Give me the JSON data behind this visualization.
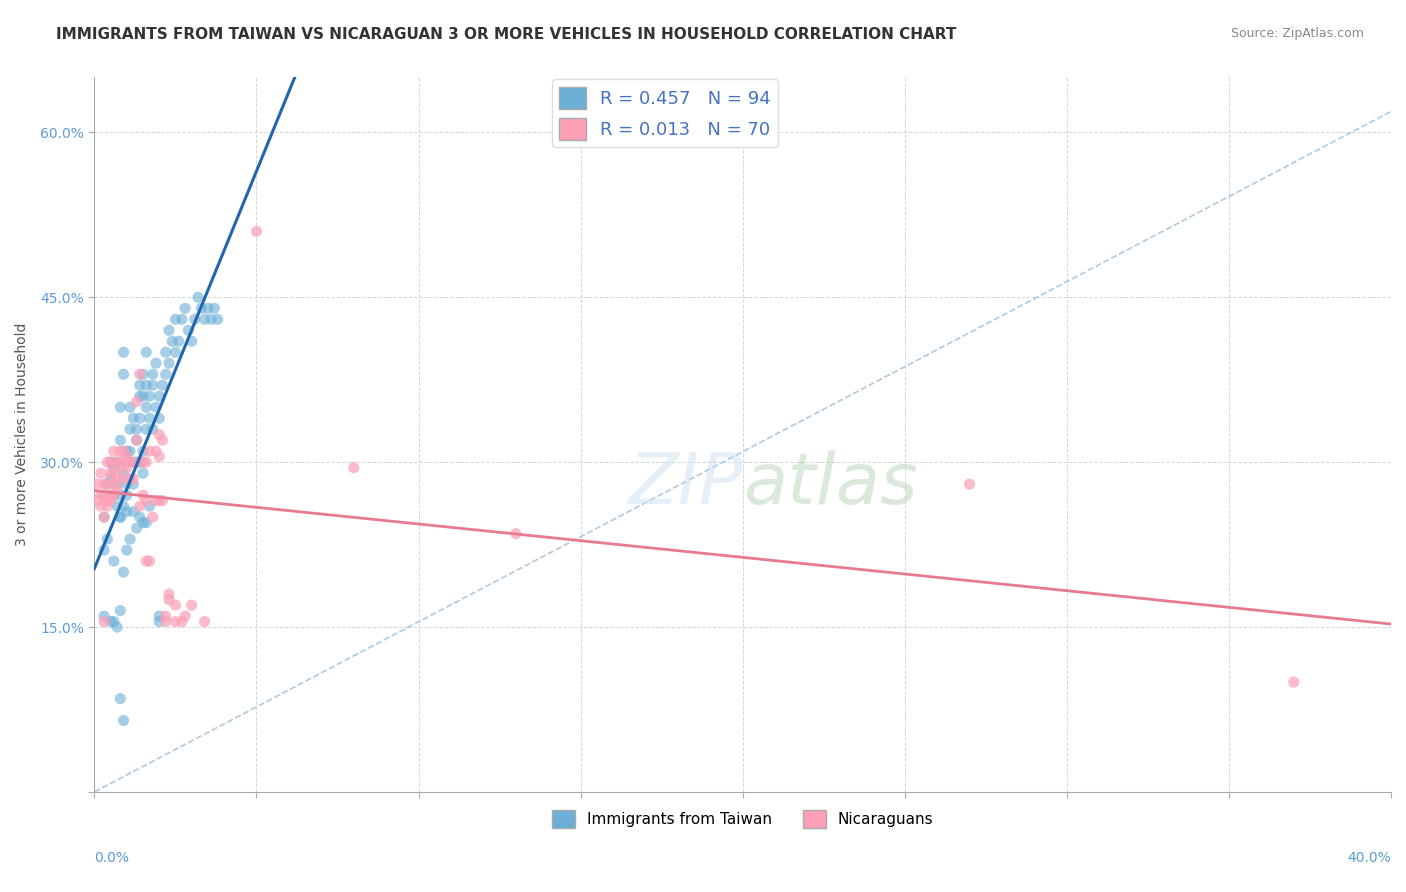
{
  "title": "IMMIGRANTS FROM TAIWAN VS NICARAGUAN 3 OR MORE VEHICLES IN HOUSEHOLD CORRELATION CHART",
  "source": "Source: ZipAtlas.com",
  "ylabel": "3 or more Vehicles in Household",
  "xmin": 0.0,
  "xmax": 0.4,
  "ymin": 0.0,
  "ymax": 0.65,
  "legend1_label": "R = 0.457   N = 94",
  "legend2_label": "R = 0.013   N = 70",
  "legend1_color": "#6baed6",
  "legend2_color": "#fc9fb5",
  "trendline1_color": "#2166ac",
  "trendline2_color": "#e87a90",
  "diagonal_color": "#8ab4d4",
  "background_color": "#ffffff",
  "grid_color": "#cccccc",
  "title_fontsize": 11,
  "source_fontsize": 9,
  "axis_label_fontsize": 10,
  "tick_fontsize": 10,
  "taiwan_scatter": [
    [
      0.005,
      0.285
    ],
    [
      0.005,
      0.3
    ],
    [
      0.006,
      0.295
    ],
    [
      0.006,
      0.27
    ],
    [
      0.007,
      0.26
    ],
    [
      0.007,
      0.28
    ],
    [
      0.007,
      0.3
    ],
    [
      0.008,
      0.32
    ],
    [
      0.008,
      0.35
    ],
    [
      0.008,
      0.27
    ],
    [
      0.008,
      0.25
    ],
    [
      0.009,
      0.29
    ],
    [
      0.009,
      0.26
    ],
    [
      0.009,
      0.4
    ],
    [
      0.009,
      0.38
    ],
    [
      0.01,
      0.255
    ],
    [
      0.01,
      0.27
    ],
    [
      0.01,
      0.31
    ],
    [
      0.01,
      0.28
    ],
    [
      0.011,
      0.33
    ],
    [
      0.011,
      0.35
    ],
    [
      0.011,
      0.31
    ],
    [
      0.012,
      0.34
    ],
    [
      0.012,
      0.28
    ],
    [
      0.012,
      0.3
    ],
    [
      0.013,
      0.32
    ],
    [
      0.013,
      0.3
    ],
    [
      0.013,
      0.33
    ],
    [
      0.014,
      0.34
    ],
    [
      0.014,
      0.37
    ],
    [
      0.014,
      0.36
    ],
    [
      0.014,
      0.3
    ],
    [
      0.015,
      0.29
    ],
    [
      0.015,
      0.31
    ],
    [
      0.015,
      0.36
    ],
    [
      0.015,
      0.38
    ],
    [
      0.016,
      0.33
    ],
    [
      0.016,
      0.35
    ],
    [
      0.016,
      0.37
    ],
    [
      0.016,
      0.4
    ],
    [
      0.017,
      0.34
    ],
    [
      0.017,
      0.36
    ],
    [
      0.018,
      0.33
    ],
    [
      0.018,
      0.38
    ],
    [
      0.018,
      0.37
    ],
    [
      0.019,
      0.35
    ],
    [
      0.019,
      0.39
    ],
    [
      0.02,
      0.36
    ],
    [
      0.02,
      0.34
    ],
    [
      0.021,
      0.37
    ],
    [
      0.022,
      0.4
    ],
    [
      0.022,
      0.38
    ],
    [
      0.023,
      0.42
    ],
    [
      0.023,
      0.39
    ],
    [
      0.024,
      0.41
    ],
    [
      0.025,
      0.43
    ],
    [
      0.025,
      0.4
    ],
    [
      0.026,
      0.41
    ],
    [
      0.027,
      0.43
    ],
    [
      0.028,
      0.44
    ],
    [
      0.029,
      0.42
    ],
    [
      0.03,
      0.41
    ],
    [
      0.031,
      0.43
    ],
    [
      0.032,
      0.45
    ],
    [
      0.033,
      0.44
    ],
    [
      0.034,
      0.43
    ],
    [
      0.035,
      0.44
    ],
    [
      0.036,
      0.43
    ],
    [
      0.037,
      0.44
    ],
    [
      0.038,
      0.43
    ],
    [
      0.003,
      0.22
    ],
    [
      0.003,
      0.25
    ],
    [
      0.004,
      0.23
    ],
    [
      0.004,
      0.28
    ],
    [
      0.005,
      0.155
    ],
    [
      0.006,
      0.155
    ],
    [
      0.006,
      0.21
    ],
    [
      0.007,
      0.15
    ],
    [
      0.008,
      0.165
    ],
    [
      0.008,
      0.25
    ],
    [
      0.009,
      0.2
    ],
    [
      0.01,
      0.22
    ],
    [
      0.011,
      0.23
    ],
    [
      0.012,
      0.255
    ],
    [
      0.013,
      0.24
    ],
    [
      0.014,
      0.25
    ],
    [
      0.015,
      0.245
    ],
    [
      0.016,
      0.245
    ],
    [
      0.017,
      0.26
    ],
    [
      0.02,
      0.155
    ],
    [
      0.02,
      0.16
    ],
    [
      0.008,
      0.085
    ],
    [
      0.009,
      0.065
    ],
    [
      0.003,
      0.16
    ]
  ],
  "nicaraguan_scatter": [
    [
      0.001,
      0.265
    ],
    [
      0.001,
      0.28
    ],
    [
      0.002,
      0.27
    ],
    [
      0.002,
      0.29
    ],
    [
      0.002,
      0.26
    ],
    [
      0.003,
      0.25
    ],
    [
      0.003,
      0.28
    ],
    [
      0.003,
      0.27
    ],
    [
      0.004,
      0.3
    ],
    [
      0.004,
      0.265
    ],
    [
      0.004,
      0.28
    ],
    [
      0.004,
      0.26
    ],
    [
      0.005,
      0.29
    ],
    [
      0.005,
      0.27
    ],
    [
      0.005,
      0.3
    ],
    [
      0.005,
      0.265
    ],
    [
      0.006,
      0.29
    ],
    [
      0.006,
      0.27
    ],
    [
      0.006,
      0.31
    ],
    [
      0.006,
      0.28
    ],
    [
      0.007,
      0.3
    ],
    [
      0.007,
      0.285
    ],
    [
      0.007,
      0.275
    ],
    [
      0.008,
      0.31
    ],
    [
      0.008,
      0.295
    ],
    [
      0.008,
      0.3
    ],
    [
      0.009,
      0.285
    ],
    [
      0.009,
      0.31
    ],
    [
      0.01,
      0.3
    ],
    [
      0.01,
      0.305
    ],
    [
      0.01,
      0.295
    ],
    [
      0.011,
      0.3
    ],
    [
      0.011,
      0.285
    ],
    [
      0.012,
      0.285
    ],
    [
      0.013,
      0.3
    ],
    [
      0.013,
      0.32
    ],
    [
      0.013,
      0.355
    ],
    [
      0.014,
      0.26
    ],
    [
      0.014,
      0.38
    ],
    [
      0.015,
      0.3
    ],
    [
      0.015,
      0.27
    ],
    [
      0.016,
      0.3
    ],
    [
      0.016,
      0.265
    ],
    [
      0.016,
      0.21
    ],
    [
      0.017,
      0.31
    ],
    [
      0.017,
      0.21
    ],
    [
      0.018,
      0.25
    ],
    [
      0.019,
      0.265
    ],
    [
      0.019,
      0.31
    ],
    [
      0.02,
      0.305
    ],
    [
      0.02,
      0.265
    ],
    [
      0.02,
      0.325
    ],
    [
      0.021,
      0.32
    ],
    [
      0.021,
      0.265
    ],
    [
      0.022,
      0.155
    ],
    [
      0.022,
      0.16
    ],
    [
      0.023,
      0.18
    ],
    [
      0.023,
      0.175
    ],
    [
      0.025,
      0.155
    ],
    [
      0.025,
      0.17
    ],
    [
      0.027,
      0.155
    ],
    [
      0.028,
      0.16
    ],
    [
      0.03,
      0.17
    ],
    [
      0.034,
      0.155
    ],
    [
      0.05,
      0.51
    ],
    [
      0.08,
      0.295
    ],
    [
      0.13,
      0.235
    ],
    [
      0.27,
      0.28
    ],
    [
      0.37,
      0.1
    ],
    [
      0.003,
      0.155
    ]
  ]
}
